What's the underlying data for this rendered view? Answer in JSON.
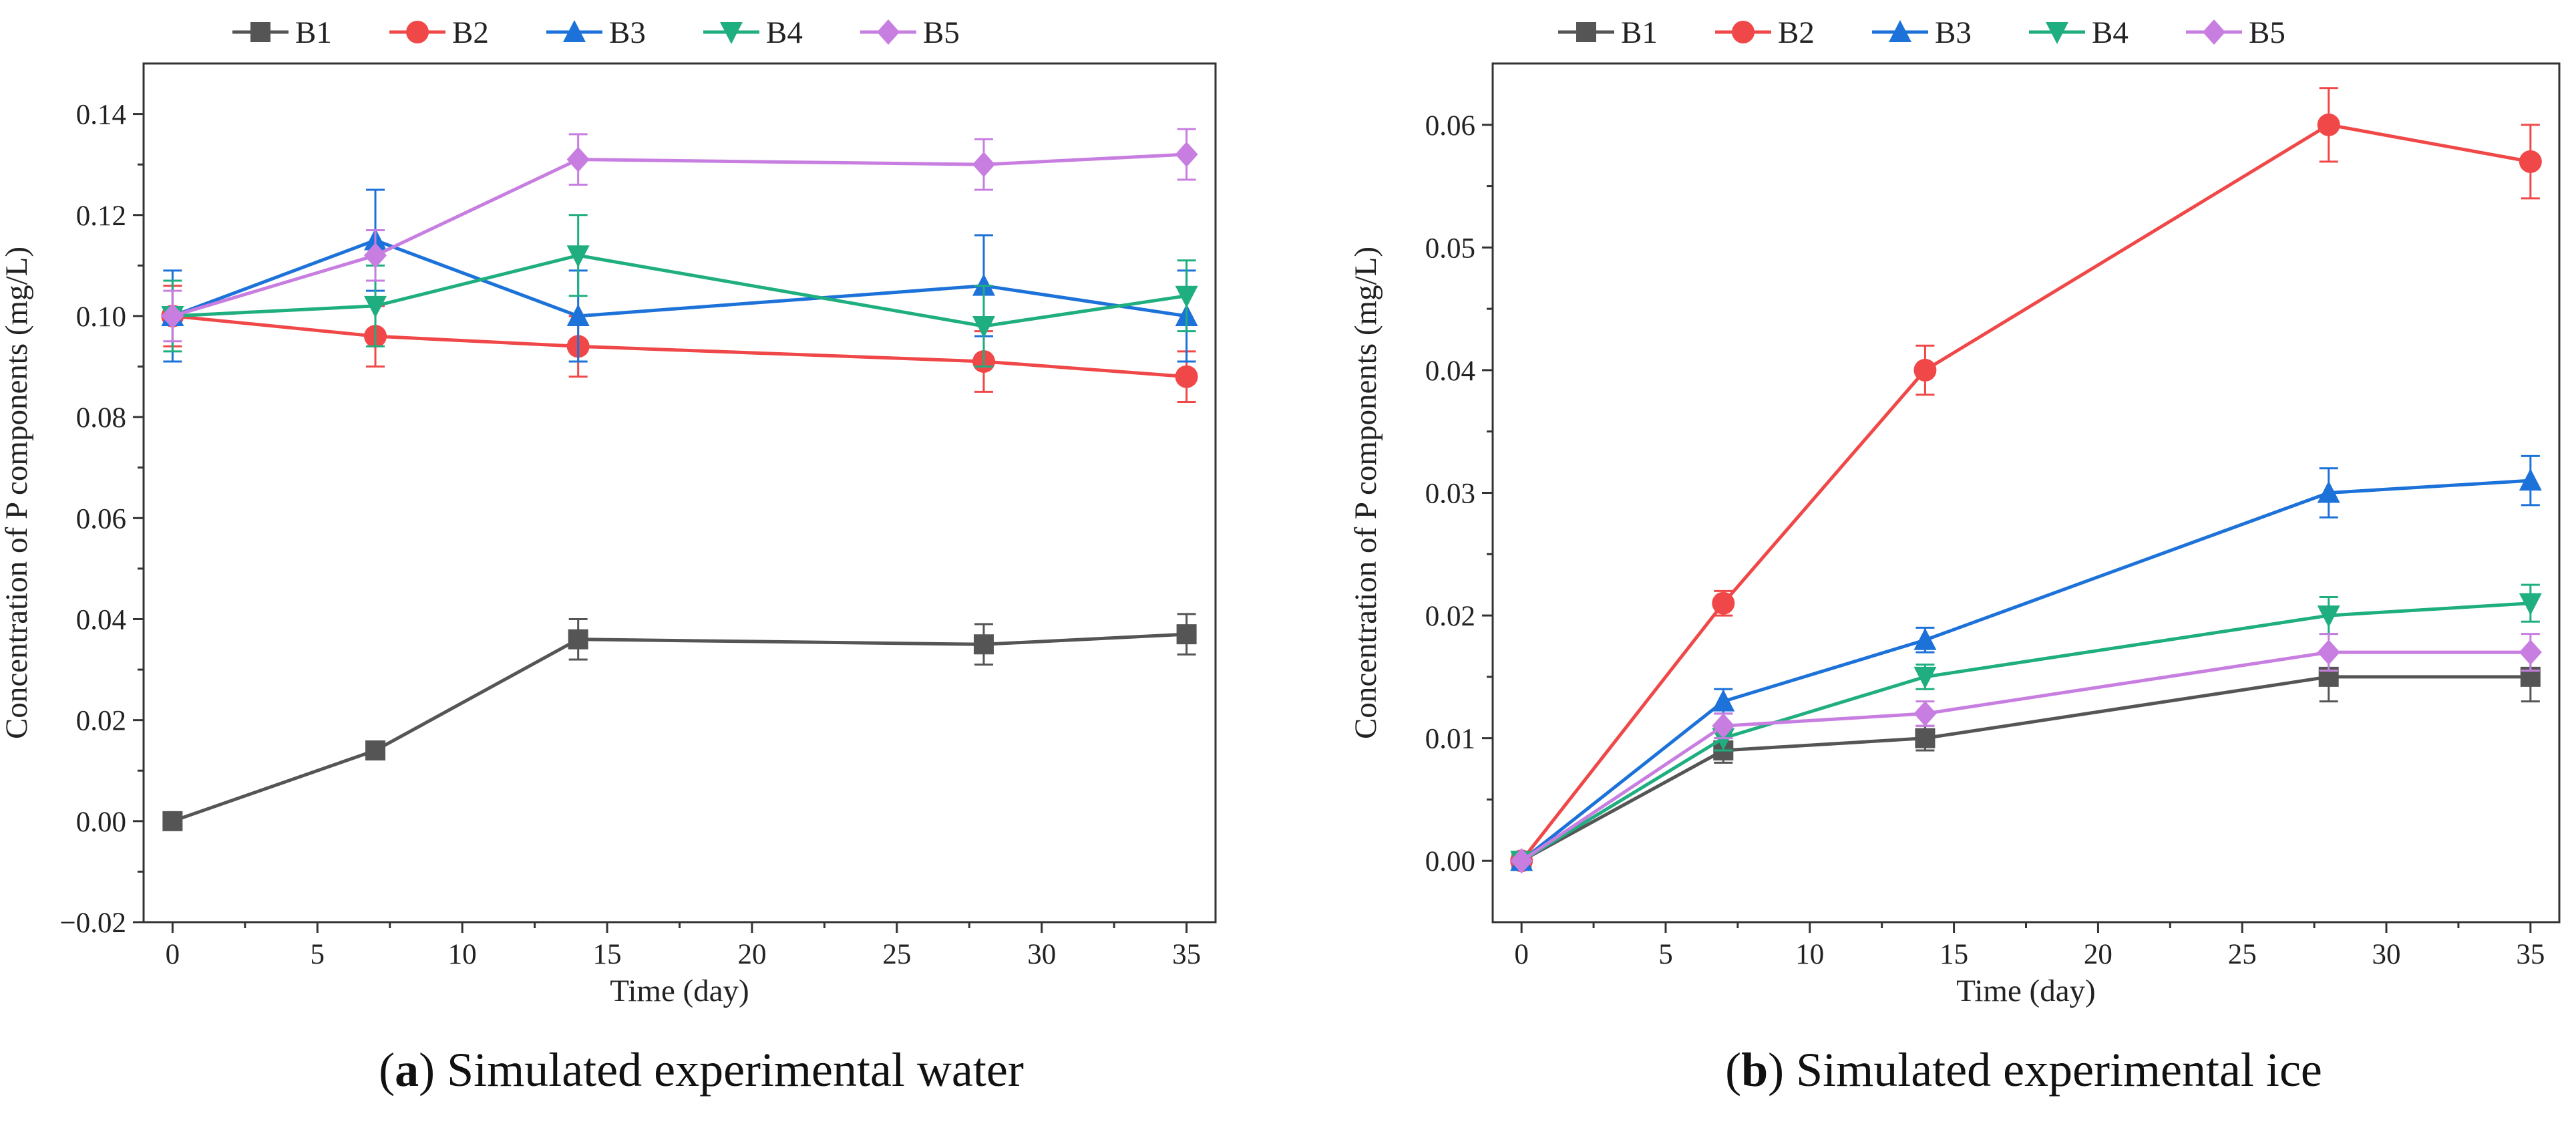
{
  "chart_data": [
    {
      "type": "line",
      "caption_letter": "a",
      "caption_text": "Simulated experimental water",
      "xlabel": "Time (day)",
      "ylabel": "Concentration of P components (mg/L)",
      "xlim": [
        -1,
        36
      ],
      "ylim": [
        -0.02,
        0.15
      ],
      "xticks": [
        0,
        5,
        10,
        15,
        20,
        25,
        30,
        35
      ],
      "xtick_labels": [
        "0",
        "5",
        "10",
        "15",
        "20",
        "25",
        "30",
        "35"
      ],
      "yticks": [
        -0.02,
        0.0,
        0.02,
        0.04,
        0.06,
        0.08,
        0.1,
        0.12,
        0.14
      ],
      "ytick_labels": [
        "−0.02",
        "0.00",
        "0.02",
        "0.04",
        "0.06",
        "0.08",
        "0.10",
        "0.12",
        "0.14"
      ],
      "x": [
        0,
        7,
        14,
        28,
        35
      ],
      "series": [
        {
          "name": "B1",
          "color": "#555555",
          "marker": "square",
          "values": [
            0.0,
            0.014,
            0.036,
            0.035,
            0.037
          ],
          "errors": [
            0.0,
            0.001,
            0.004,
            0.004,
            0.004
          ]
        },
        {
          "name": "B2",
          "color": "#f04848",
          "marker": "circle",
          "values": [
            0.1,
            0.096,
            0.094,
            0.091,
            0.088
          ],
          "errors": [
            0.006,
            0.006,
            0.006,
            0.006,
            0.005
          ]
        },
        {
          "name": "B3",
          "color": "#1c72d8",
          "marker": "triangle-up",
          "values": [
            0.1,
            0.115,
            0.1,
            0.106,
            0.1
          ],
          "errors": [
            0.009,
            0.01,
            0.009,
            0.01,
            0.009
          ]
        },
        {
          "name": "B4",
          "color": "#1fae80",
          "marker": "triangle-down",
          "values": [
            0.1,
            0.102,
            0.112,
            0.098,
            0.104
          ],
          "errors": [
            0.007,
            0.008,
            0.008,
            0.008,
            0.007
          ]
        },
        {
          "name": "B5",
          "color": "#c77ee0",
          "marker": "diamond",
          "values": [
            0.1,
            0.112,
            0.131,
            0.13,
            0.132
          ],
          "errors": [
            0.005,
            0.005,
            0.005,
            0.005,
            0.005
          ]
        }
      ]
    },
    {
      "type": "line",
      "caption_letter": "b",
      "caption_text": "Simulated experimental ice",
      "xlabel": "Time (day)",
      "ylabel": "Concentration of P components (mg/L)",
      "xlim": [
        -1,
        36
      ],
      "ylim": [
        -0.005,
        0.065
      ],
      "xticks": [
        0,
        5,
        10,
        15,
        20,
        25,
        30,
        35
      ],
      "xtick_labels": [
        "0",
        "5",
        "10",
        "15",
        "20",
        "25",
        "30",
        "35"
      ],
      "yticks": [
        0.0,
        0.01,
        0.02,
        0.03,
        0.04,
        0.05,
        0.06
      ],
      "ytick_labels": [
        "0.00",
        "0.01",
        "0.02",
        "0.03",
        "0.04",
        "0.05",
        "0.06"
      ],
      "x": [
        0,
        7,
        14,
        28,
        35
      ],
      "series": [
        {
          "name": "B1",
          "color": "#555555",
          "marker": "square",
          "values": [
            0.0,
            0.009,
            0.01,
            0.015,
            0.015
          ],
          "errors": [
            0.0,
            0.001,
            0.001,
            0.002,
            0.002
          ]
        },
        {
          "name": "B2",
          "color": "#f04848",
          "marker": "circle",
          "values": [
            0.0,
            0.021,
            0.04,
            0.06,
            0.057
          ],
          "errors": [
            0.0,
            0.001,
            0.002,
            0.003,
            0.003
          ]
        },
        {
          "name": "B3",
          "color": "#1c72d8",
          "marker": "triangle-up",
          "values": [
            0.0,
            0.013,
            0.018,
            0.03,
            0.031
          ],
          "errors": [
            0.0,
            0.001,
            0.001,
            0.002,
            0.002
          ]
        },
        {
          "name": "B4",
          "color": "#1fae80",
          "marker": "triangle-down",
          "values": [
            0.0,
            0.01,
            0.015,
            0.02,
            0.021
          ],
          "errors": [
            0.0,
            0.001,
            0.001,
            0.0015,
            0.0015
          ]
        },
        {
          "name": "B5",
          "color": "#c77ee0",
          "marker": "diamond",
          "values": [
            0.0,
            0.011,
            0.012,
            0.017,
            0.017
          ],
          "errors": [
            0.0,
            0.001,
            0.001,
            0.0015,
            0.0015
          ]
        }
      ]
    }
  ]
}
